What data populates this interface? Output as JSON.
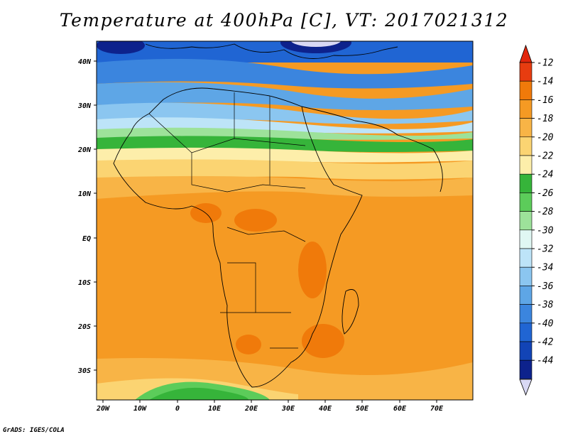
{
  "title": "Temperature at 400hPa [C], VT: 2017021312",
  "credit": "GrADS: IGES/COLA",
  "lon_labels": [
    "20W",
    "10W",
    "0",
    "10E",
    "20E",
    "30E",
    "40E",
    "50E",
    "60E",
    "70E"
  ],
  "lat_labels": [
    "40N",
    "30N",
    "20N",
    "10N",
    "EQ",
    "10S",
    "20S",
    "30S"
  ],
  "colorbar": {
    "labels": [
      "-12",
      "-14",
      "-16",
      "-18",
      "-20",
      "-22",
      "-24",
      "-26",
      "-28",
      "-30",
      "-32",
      "-34",
      "-36",
      "-38",
      "-40",
      "-42",
      "-44"
    ],
    "colors": [
      "#e73c10",
      "#f07a0a",
      "#f59a23",
      "#f8b446",
      "#fbd472",
      "#fdeeaa",
      "#36b43a",
      "#5ccc5a",
      "#9de29a",
      "#e0f7f3",
      "#bde4f8",
      "#8bc6f0",
      "#5ea6e6",
      "#3b85de",
      "#2065d3",
      "#1244b6",
      "#0d228c"
    ],
    "top_arrow_color": "#e2260c",
    "bottom_arrow_color": "#d8d8f4"
  }
}
